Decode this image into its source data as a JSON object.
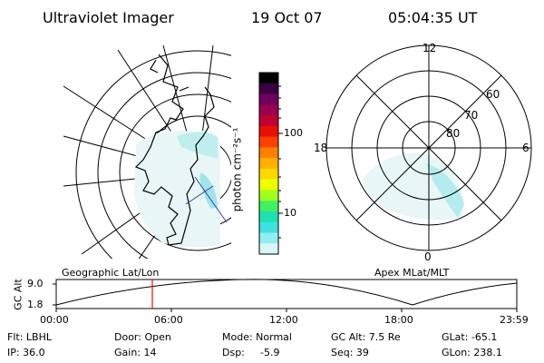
{
  "header": {
    "instrument": "Ultraviolet Imager",
    "date": "19 Oct 07",
    "time": "05:04:35 UT"
  },
  "colorbar": {
    "unit_label": "photon cm⁻²s⁻¹",
    "ticks": [
      "100",
      "10"
    ],
    "colors": [
      "#000000",
      "#3a0040",
      "#700060",
      "#9a0050",
      "#c00030",
      "#e81000",
      "#ff4000",
      "#ff8000",
      "#ffb000",
      "#ffd800",
      "#f0ff00",
      "#a0ff20",
      "#40f060",
      "#20e0b0",
      "#40e0e0",
      "#90eef0",
      "#d8f6f6"
    ]
  },
  "geo_panel": {
    "label": "Geographic Lat/Lon"
  },
  "apex_panel": {
    "label": "Apex MLat/MLT",
    "mlt_labels": {
      "top": "12",
      "left": "18",
      "right": "6",
      "bottom": "0"
    },
    "lat_labels": [
      "60",
      "70",
      "80"
    ]
  },
  "timeline": {
    "y_axis_label": "GC Alt",
    "y_ticks": [
      "9.0",
      "1.8"
    ],
    "x_ticks": [
      "00:00",
      "06:00",
      "12:00",
      "18:00",
      "23:59"
    ],
    "marker_color": "#ff0000"
  },
  "status": {
    "filter": "Flt: LBHL",
    "ip": "IP: 36.0",
    "door": "Door: Open",
    "gain": "Gain: 14",
    "mode": "Mode: Normal",
    "dsp_label": "Dsp:",
    "dsp_value": "-5.9",
    "gc_alt": "GC Alt: 7.5 Re",
    "seq": "Seq: 39",
    "glat": "GLat: -65.1",
    "glon": "GLon: 238.1"
  }
}
